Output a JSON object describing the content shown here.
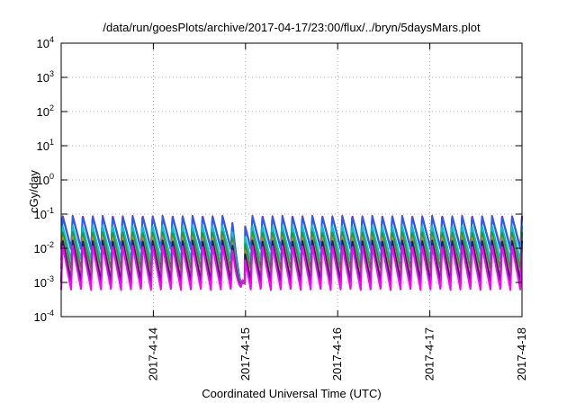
{
  "chart_data": {
    "type": "line",
    "title": "/data/run/goesPlots/archive/2017-04-17/23:00/flux/../bryn/5daysMars.plot",
    "xlabel": "Coordinated Universal Time (UTC)",
    "ylabel": "cGy/day",
    "yscale": "log",
    "ylim": [
      0.0001,
      10000
    ],
    "xlim": [
      "2017-04-13T00:00",
      "2017-04-18T00:00"
    ],
    "grid": true,
    "x_tick_labels": [
      "2017-4-14",
      "2017-4-15",
      "2017-4-16",
      "2017-4-17",
      "2017-4-18"
    ],
    "y_tick_labels": [
      {
        "base": "10",
        "exp": "-4"
      },
      {
        "base": "10",
        "exp": "-3"
      },
      {
        "base": "10",
        "exp": "-2"
      },
      {
        "base": "10",
        "exp": "-1"
      },
      {
        "base": "10",
        "exp": "0"
      },
      {
        "base": "10",
        "exp": "1"
      },
      {
        "base": "10",
        "exp": "2"
      },
      {
        "base": "10",
        "exp": "3"
      },
      {
        "base": "10",
        "exp": "4"
      }
    ],
    "oscillation_period_hours": 2.6,
    "anomaly": {
      "start": "2017-04-14T20:20",
      "end": "2017-04-14T23:50",
      "floor": 0.00045
    },
    "series": [
      {
        "color": "#e8103a",
        "peak": 0.09,
        "trough": 0.01
      },
      {
        "color": "#1f5fff",
        "peak": 0.085,
        "trough": 0.009
      },
      {
        "color": "#00c8c8",
        "peak": 0.045,
        "trough": 0.0045
      },
      {
        "color": "#1a9a3a",
        "peak": 0.03,
        "trough": 0.0025
      },
      {
        "color": "#b8860b",
        "peak": 0.022,
        "trough": 0.0013
      },
      {
        "color": "#1a1a7a",
        "peak": 0.017,
        "trough": 0.001
      },
      {
        "color": "#ff00ff",
        "peak": 0.012,
        "trough": 0.0006
      }
    ]
  }
}
